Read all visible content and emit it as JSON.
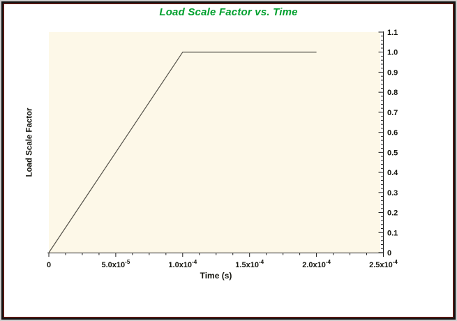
{
  "window": {
    "title": "Load Scale Factor vs. Time"
  },
  "colors": {
    "title_green": "#00a02e",
    "border_black": "#141414",
    "border_red": "#8c1b10",
    "outer_gray": "#cfcfcf",
    "page_bg": "#ffffff"
  },
  "chart_data": {
    "type": "line",
    "title": "Load Scale Factor vs. Time",
    "xlabel": "Time (s)",
    "ylabel": "Load Scale Factor",
    "xlim": [
      0,
      0.00025
    ],
    "ylim": [
      0,
      1.1
    ],
    "grid": false,
    "legend": "none",
    "plot_bg": "#fdf8e8",
    "axis_color": "#1c1c1c",
    "tick_label_color": "#15150f",
    "x_ticks": [
      {
        "value": 0,
        "base": "0",
        "exp": ""
      },
      {
        "value": 5e-05,
        "base": "5.0x10",
        "exp": "-5"
      },
      {
        "value": 0.0001,
        "base": "1.0x10",
        "exp": "-4"
      },
      {
        "value": 0.00015,
        "base": "1.5x10",
        "exp": "-4"
      },
      {
        "value": 0.0002,
        "base": "2.0x10",
        "exp": "-4"
      },
      {
        "value": 0.00025,
        "base": "2.5x10",
        "exp": "-4"
      }
    ],
    "y_ticks": [
      {
        "value": 0,
        "label": "0"
      },
      {
        "value": 0.1,
        "label": "0.1"
      },
      {
        "value": 0.2,
        "label": "0.2"
      },
      {
        "value": 0.3,
        "label": "0.3"
      },
      {
        "value": 0.4,
        "label": "0.4"
      },
      {
        "value": 0.5,
        "label": "0.5"
      },
      {
        "value": 0.6,
        "label": "0.6"
      },
      {
        "value": 0.7,
        "label": "0.7"
      },
      {
        "value": 0.8,
        "label": "0.8"
      },
      {
        "value": 0.9,
        "label": "0.9"
      },
      {
        "value": 1.0,
        "label": "1.0"
      },
      {
        "value": 1.1,
        "label": "1.1"
      }
    ],
    "x_minor_per_major": 4,
    "y_minor_per_major": 5,
    "series": [
      {
        "name": "Load Scale Factor",
        "color": "#56534b",
        "x": [
          0,
          0.0001,
          0.0002
        ],
        "y": [
          0,
          1.0,
          1.0
        ]
      }
    ]
  }
}
